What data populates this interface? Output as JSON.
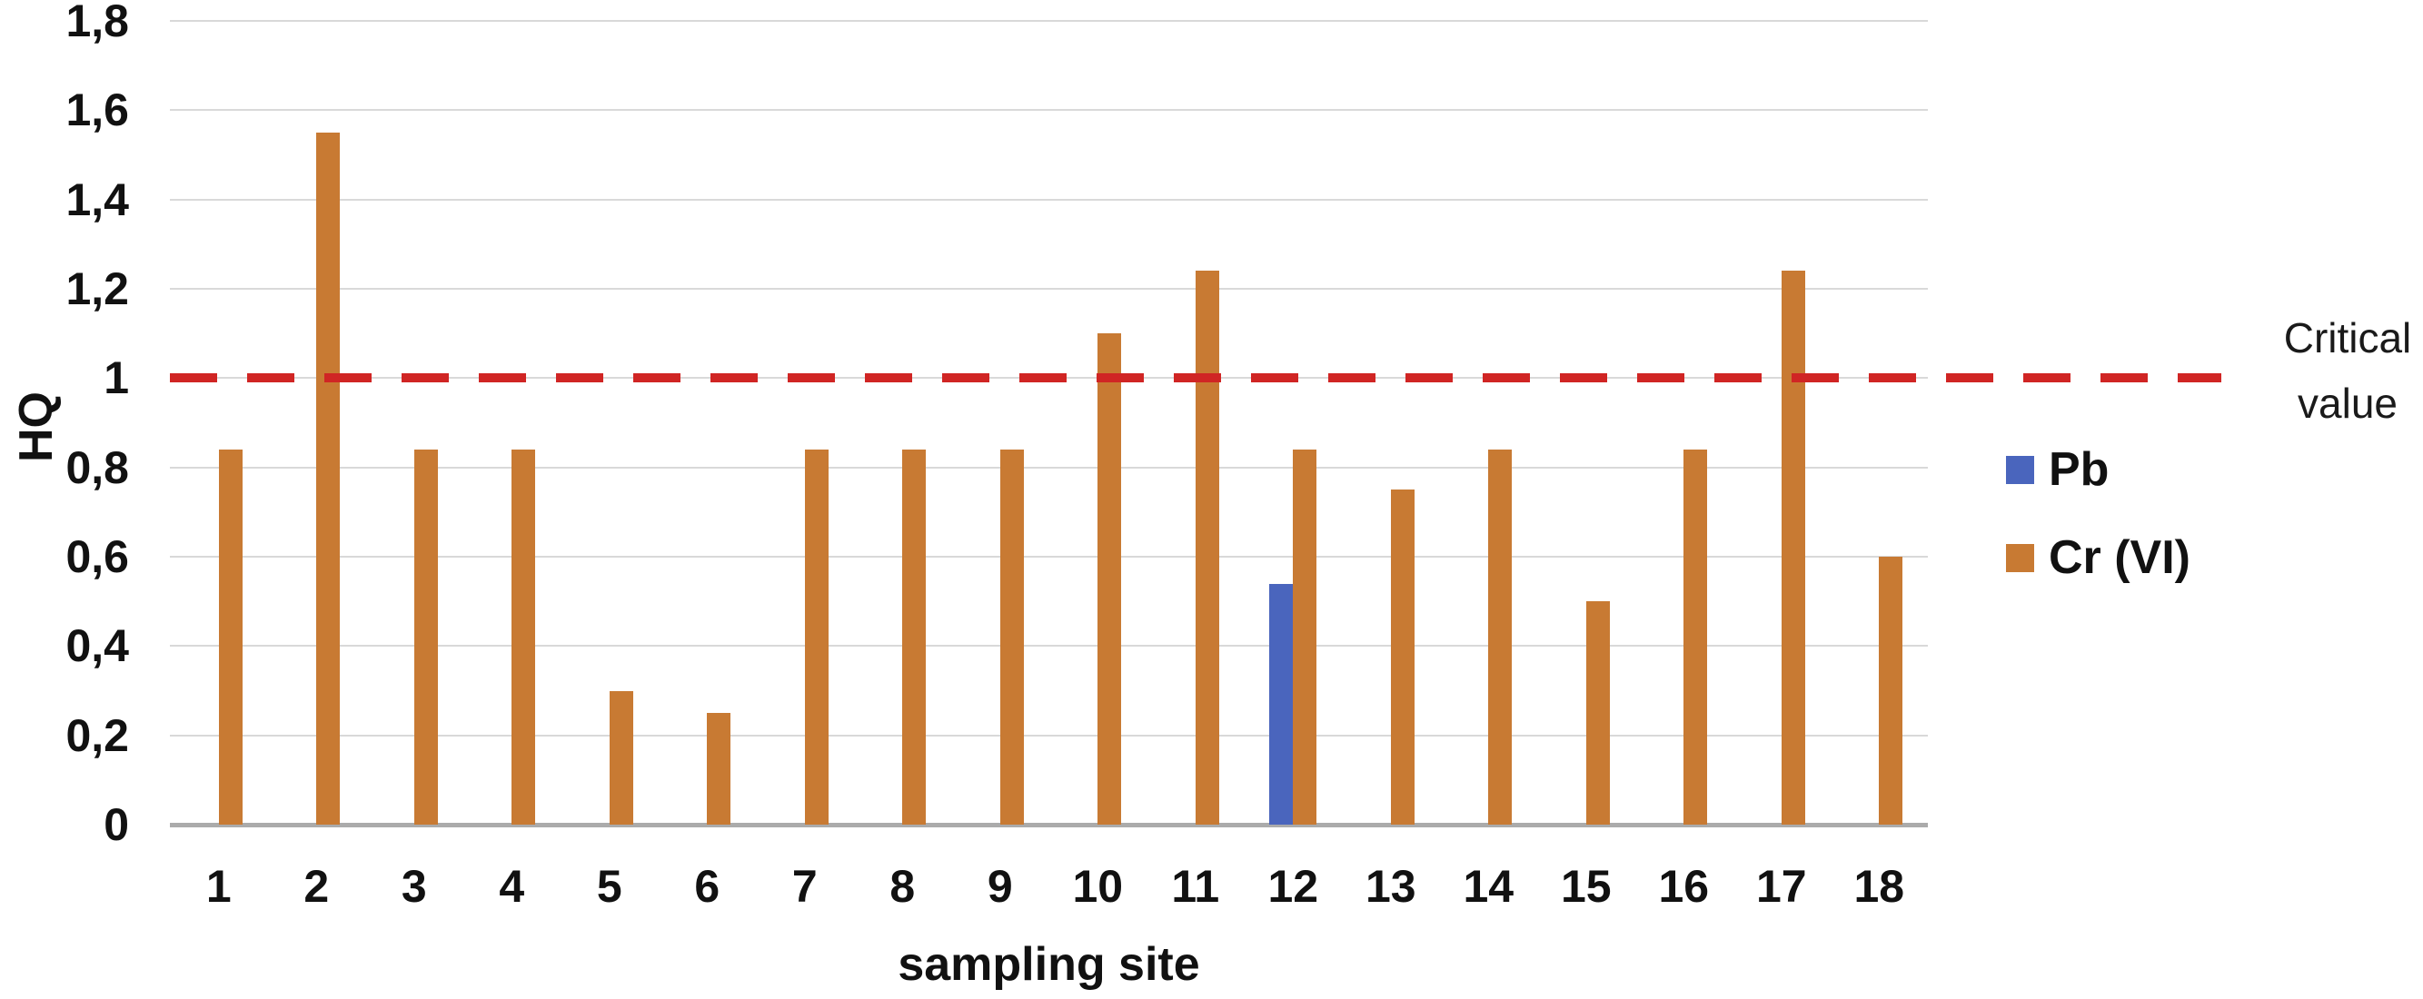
{
  "chart_data": {
    "type": "bar",
    "title": "",
    "xlabel": "sampling site",
    "ylabel": "HQ",
    "categories": [
      "1",
      "2",
      "3",
      "4",
      "5",
      "6",
      "7",
      "8",
      "9",
      "10",
      "11",
      "12",
      "13",
      "14",
      "15",
      "16",
      "17",
      "18"
    ],
    "series": [
      {
        "name": "Pb",
        "color": "#4a65bd",
        "values": [
          0,
          0,
          0,
          0,
          0,
          0,
          0,
          0,
          0,
          0,
          0,
          0.54,
          0,
          0,
          0,
          0,
          0,
          0
        ]
      },
      {
        "name": "Cr (VI)",
        "color": "#c87a33",
        "values": [
          0.84,
          1.55,
          0.84,
          0.84,
          0.3,
          0.25,
          0.84,
          0.84,
          0.84,
          1.1,
          1.24,
          0.84,
          0.75,
          0.84,
          0.5,
          0.84,
          1.24,
          0.6
        ]
      }
    ],
    "ylim": [
      0,
      1.8
    ],
    "ytick_labels": [
      "0",
      "0,2",
      "0,4",
      "0,6",
      "0,8",
      "1",
      "1,2",
      "1,4",
      "1,6",
      "1,8"
    ],
    "decimal_separator": ",",
    "grid": "horizontal",
    "legend_position": "right",
    "critical_line": {
      "value": 1,
      "label": "Critical value",
      "color": "#d02524",
      "style": "dashed"
    },
    "colors": {
      "gridline": "#d9d9d9",
      "axisline": "#ababab",
      "text": "#111111"
    }
  }
}
